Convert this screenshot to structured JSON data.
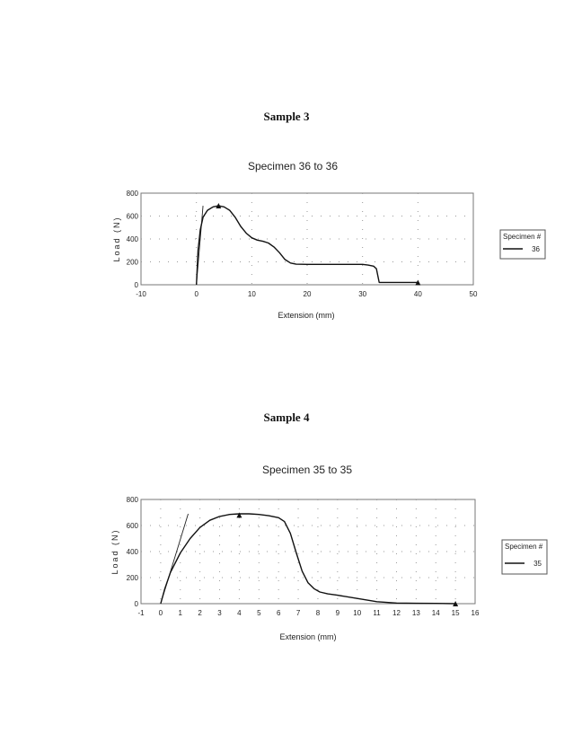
{
  "headings": {
    "sample3": "Sample 3",
    "sample4": "Sample 4"
  },
  "chart_data": [
    {
      "type": "line",
      "title": "Specimen 36 to 36",
      "xlabel": "Extension (mm)",
      "ylabel": "Load (N)",
      "xlim": [
        -10,
        50
      ],
      "ylim": [
        0,
        800
      ],
      "xticks": [
        -10,
        0,
        10,
        20,
        30,
        40,
        50
      ],
      "yticks": [
        0,
        200,
        400,
        600,
        800
      ],
      "grid": true,
      "legend": {
        "title": "Specimen #",
        "placement": "right",
        "entries": [
          "36"
        ]
      },
      "series": [
        {
          "name": "36",
          "color": "#111111",
          "x": [
            0,
            0.3,
            0.7,
            1.2,
            2.0,
            3.0,
            4.0,
            5.0,
            6.0,
            7.0,
            8.0,
            9.0,
            10.0,
            11.0,
            12.0,
            13.0,
            14.0,
            15.0,
            16.0,
            17.0,
            18.0,
            20.0,
            25.0,
            30.0,
            31.0,
            32.0,
            32.5,
            33.0,
            40.0
          ],
          "y": [
            0,
            300,
            480,
            590,
            650,
            680,
            690,
            680,
            650,
            590,
            510,
            450,
            410,
            390,
            380,
            365,
            330,
            280,
            220,
            190,
            180,
            178,
            178,
            178,
            172,
            162,
            140,
            20,
            20
          ]
        }
      ],
      "slope_line": {
        "x": [
          0,
          1.2
        ],
        "y": [
          0,
          690
        ]
      },
      "markers": [
        {
          "x": 4.0,
          "y": 690
        },
        {
          "x": 40.0,
          "y": 20
        }
      ]
    },
    {
      "type": "line",
      "title": "Specimen 35 to 35",
      "xlabel": "Extension (mm)",
      "ylabel": "Load (N)",
      "xlim": [
        -1,
        16
      ],
      "ylim": [
        0,
        800
      ],
      "xticks": [
        -1,
        0,
        1,
        2,
        3,
        4,
        5,
        6,
        7,
        8,
        9,
        10,
        11,
        12,
        13,
        14,
        15,
        16
      ],
      "yticks": [
        0,
        200,
        400,
        600,
        800
      ],
      "grid": true,
      "legend": {
        "title": "Specimen #",
        "placement": "right",
        "entries": [
          "35"
        ]
      },
      "series": [
        {
          "name": "35",
          "color": "#111111",
          "x": [
            0,
            0.2,
            0.5,
            1.0,
            1.5,
            2.0,
            2.5,
            3.0,
            3.5,
            4.0,
            4.5,
            5.0,
            5.5,
            6.0,
            6.3,
            6.6,
            6.9,
            7.2,
            7.5,
            7.8,
            8.1,
            8.5,
            9.0,
            10.0,
            11.0,
            12.0,
            13.0,
            14.0,
            15.0
          ],
          "y": [
            0,
            110,
            240,
            390,
            500,
            585,
            640,
            670,
            685,
            690,
            690,
            685,
            675,
            660,
            630,
            540,
            390,
            250,
            160,
            115,
            90,
            75,
            65,
            40,
            15,
            5,
            3,
            2,
            0
          ]
        }
      ],
      "slope_line": {
        "x": [
          0,
          1.4
        ],
        "y": [
          0,
          690
        ]
      },
      "markers": [
        {
          "x": 4.0,
          "y": 680
        },
        {
          "x": 15.0,
          "y": 0
        }
      ]
    }
  ]
}
